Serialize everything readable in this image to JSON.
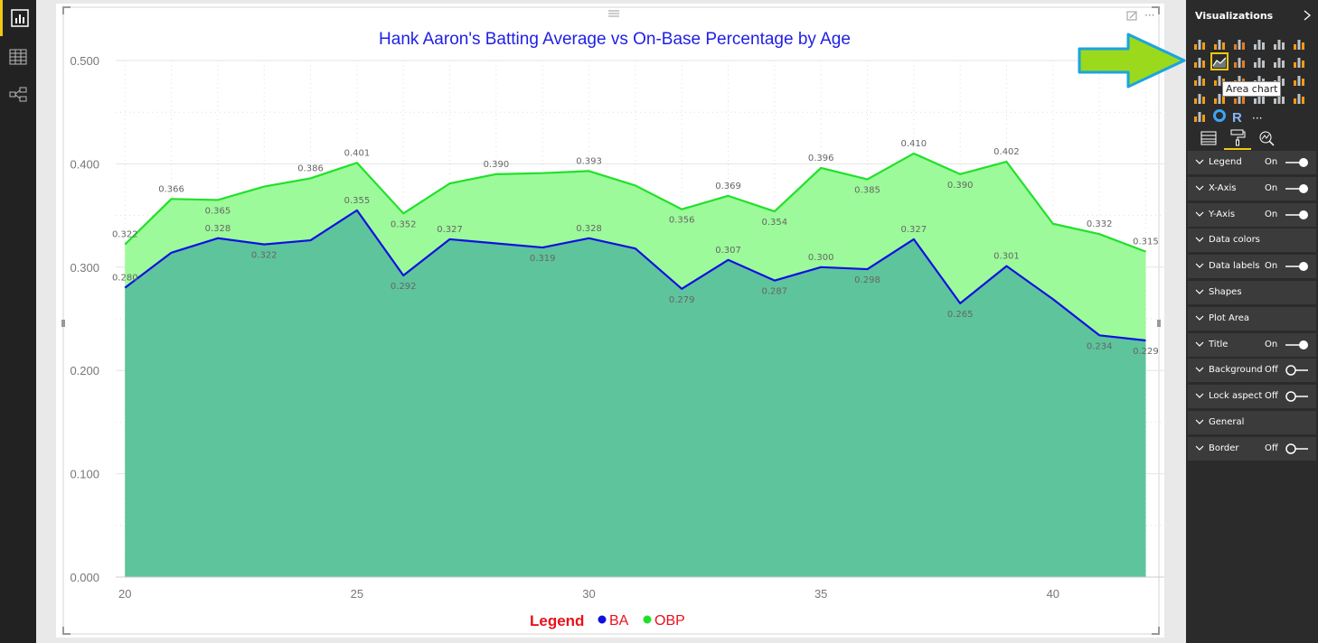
{
  "left_rail": {
    "items": [
      {
        "name": "report-view",
        "icon": "bar-chart-icon",
        "active": true
      },
      {
        "name": "data-view",
        "icon": "table-grid-icon",
        "active": false
      },
      {
        "name": "relationships-view",
        "icon": "relationships-icon",
        "active": false
      }
    ]
  },
  "visual_header": {
    "drag_icon": "drag-handle-icon",
    "focus_icon": "focus-mode-icon",
    "more_label": "···"
  },
  "chart_data": {
    "type": "area",
    "title": "Hank Aaron's Batting Average vs On-Base Percentage by Age",
    "title_color": "#1f1fe6",
    "x": [
      20,
      21,
      22,
      23,
      24,
      25,
      26,
      27,
      28,
      29,
      30,
      31,
      32,
      33,
      34,
      35,
      36,
      37,
      38,
      39,
      40,
      41,
      42
    ],
    "x_ticks": [
      "20",
      "25",
      "30",
      "35",
      "40"
    ],
    "x_tick_values": [
      20,
      25,
      30,
      35,
      40
    ],
    "xlim": [
      19.8,
      42.4
    ],
    "ylim": [
      0,
      0.5
    ],
    "y_ticks": [
      "0.000",
      "0.100",
      "0.200",
      "0.300",
      "0.400",
      "0.500"
    ],
    "y_tick_values": [
      0,
      0.1,
      0.2,
      0.3,
      0.4,
      0.5
    ],
    "grid": true,
    "legend_position": "bottom-center",
    "legend_title": "Legend",
    "legend_title_color": "#e8121d",
    "series": [
      {
        "name": "OBP",
        "color": "#22e02a",
        "fill": "#9cfa9a",
        "values": [
          0.322,
          0.366,
          0.365,
          0.378,
          0.386,
          0.401,
          0.352,
          0.381,
          0.39,
          0.391,
          0.393,
          0.379,
          0.356,
          0.369,
          0.354,
          0.396,
          0.385,
          0.41,
          0.39,
          0.402,
          0.342,
          0.332,
          0.315
        ],
        "labels": [
          "0.322",
          "0.366",
          "0.365",
          "",
          "0.386",
          "0.401",
          "0.352",
          "",
          "0.390",
          "",
          "0.393",
          "",
          "0.356",
          "0.369",
          "0.354",
          "0.396",
          "0.385",
          "0.410",
          "0.390",
          "0.402",
          "",
          "0.332",
          "0.315"
        ]
      },
      {
        "name": "BA",
        "color": "#1010e0",
        "fill": "#5ec49c",
        "values": [
          0.28,
          0.314,
          0.328,
          0.322,
          0.326,
          0.355,
          0.292,
          0.327,
          0.323,
          0.319,
          0.328,
          0.318,
          0.279,
          0.307,
          0.287,
          0.3,
          0.298,
          0.327,
          0.265,
          0.301,
          0.269,
          0.234,
          0.229
        ],
        "labels": [
          "0.280",
          "",
          "0.328",
          "0.322",
          "",
          "0.355",
          "0.292",
          "0.327",
          "",
          "0.319",
          "0.328",
          "",
          "0.279",
          "0.307",
          "0.287",
          "0.300",
          "0.298",
          "0.327",
          "0.265",
          "0.301",
          "",
          "0.234",
          "0.229"
        ]
      }
    ]
  },
  "viz_pane": {
    "title": "Visualizations",
    "collapse_icon": "chevron-right-icon",
    "tooltip": "Area chart",
    "selected_icon_index": 7,
    "icons": [
      "stacked-bar-icon",
      "stacked-column-icon",
      "clustered-bar-icon",
      "clustered-column-icon",
      "100-bar-icon",
      "100-column-icon",
      "line-chart-icon",
      "area-chart-icon",
      "stacked-area-icon",
      "line-column-icon",
      "line-clustered-icon",
      "ribbon-icon",
      "scatter-icon",
      "pie-icon",
      "waterfall-icon",
      "donut-icon",
      "table-icon",
      "matrix-icon",
      "funnel-icon",
      "map-icon",
      "filled-map-icon",
      "gauge-icon",
      "card-icon",
      "kpi-icon",
      "slicer-icon",
      "donut-ring-icon",
      "r-visual-icon",
      "more-icon"
    ],
    "more_label": "···",
    "r_label": "R",
    "tabs": [
      {
        "name": "fields-tab",
        "icon": "fields-icon"
      },
      {
        "name": "format-tab",
        "icon": "paint-roller-icon",
        "active": true
      },
      {
        "name": "analytics-tab",
        "icon": "analytics-icon"
      }
    ],
    "format_cards": [
      {
        "label": "Legend",
        "state": "On"
      },
      {
        "label": "X-Axis",
        "state": "On"
      },
      {
        "label": "Y-Axis",
        "state": "On"
      },
      {
        "label": "Data colors",
        "state": ""
      },
      {
        "label": "Data labels",
        "state": "On"
      },
      {
        "label": "Shapes",
        "state": ""
      },
      {
        "label": "Plot Area",
        "state": ""
      },
      {
        "label": "Title",
        "state": "On"
      },
      {
        "label": "Background",
        "state": "Off"
      },
      {
        "label": "Lock aspect",
        "state": "Off"
      },
      {
        "label": "General",
        "state": ""
      },
      {
        "label": "Border",
        "state": "Off"
      }
    ]
  },
  "callout_arrow": {
    "color": "#9bd91c",
    "outline": "#1aa4e0",
    "icon": "pointer-arrow-icon"
  }
}
